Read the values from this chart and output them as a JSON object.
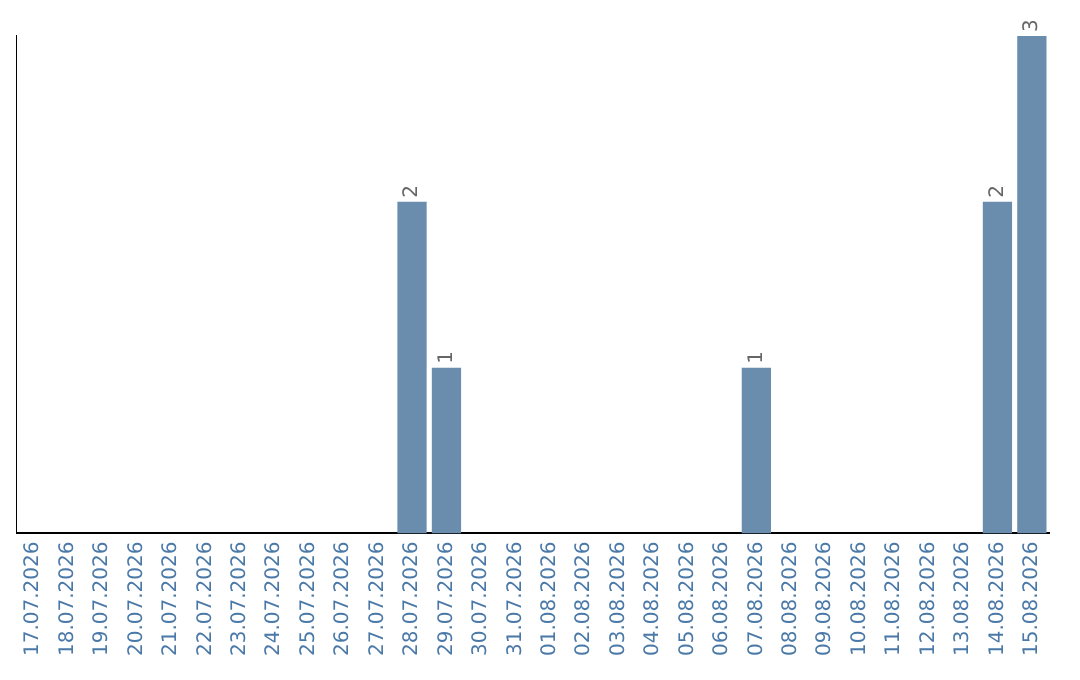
{
  "chart_data": {
    "type": "bar",
    "categories": [
      "17.07.2026",
      "18.07.2026",
      "19.07.2026",
      "20.07.2026",
      "21.07.2026",
      "22.07.2026",
      "23.07.2026",
      "24.07.2026",
      "25.07.2026",
      "26.07.2026",
      "27.07.2026",
      "28.07.2026",
      "29.07.2026",
      "30.07.2026",
      "31.07.2026",
      "01.08.2026",
      "02.08.2026",
      "03.08.2026",
      "04.08.2026",
      "05.08.2026",
      "06.08.2026",
      "07.08.2026",
      "08.08.2026",
      "09.08.2026",
      "10.08.2026",
      "11.08.2026",
      "12.08.2026",
      "13.08.2026",
      "14.08.2026",
      "15.08.2026"
    ],
    "values": [
      0,
      0,
      0,
      0,
      0,
      0,
      0,
      0,
      0,
      0,
      0,
      2,
      1,
      0,
      0,
      0,
      0,
      0,
      0,
      0,
      0,
      1,
      0,
      0,
      0,
      0,
      0,
      0,
      2,
      3
    ],
    "value_labels": [
      null,
      null,
      null,
      null,
      null,
      null,
      null,
      null,
      null,
      null,
      null,
      "2",
      "1",
      null,
      null,
      null,
      null,
      null,
      null,
      null,
      null,
      "1",
      null,
      null,
      null,
      null,
      null,
      null,
      "2",
      "3"
    ],
    "color": "#6a8cad",
    "grid": false,
    "legend": false,
    "tick_labels": "x"
  }
}
